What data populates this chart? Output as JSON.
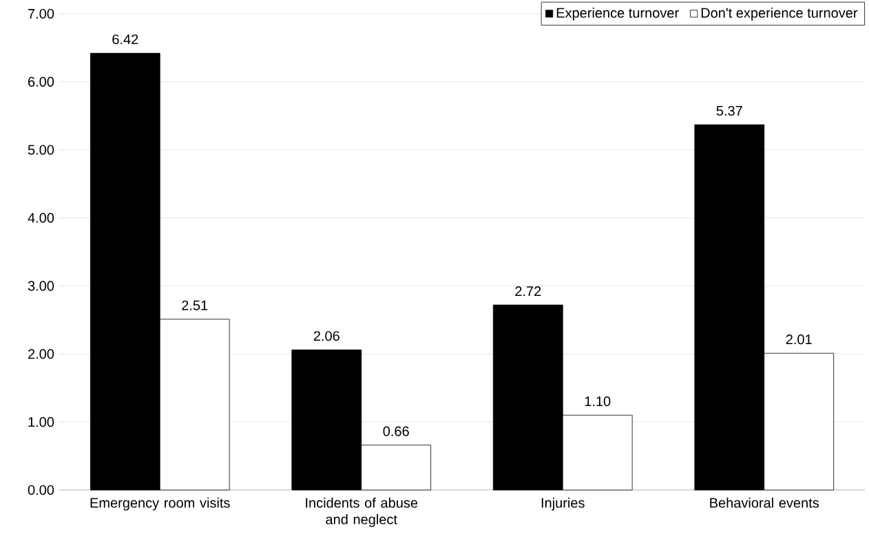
{
  "chart_data": {
    "type": "bar",
    "categories": [
      "Emergency room visits",
      "Incidents of abuse and neglect",
      "Injuries",
      "Behavioral events"
    ],
    "series": [
      {
        "name": "Experience turnover",
        "color": "#000000",
        "values": [
          6.42,
          2.06,
          2.72,
          5.37
        ],
        "value_labels": [
          "6.42",
          "2.06",
          "2.72",
          "5.37"
        ]
      },
      {
        "name": "Don't experience turnover",
        "color": "#ffffff",
        "values": [
          2.51,
          0.66,
          1.1,
          2.01
        ],
        "value_labels": [
          "2.51",
          "0.66",
          "1.10",
          "2.01"
        ]
      }
    ],
    "ylim": [
      0,
      7
    ],
    "yticks": [
      {
        "value": 0,
        "label": "0.00"
      },
      {
        "value": 1,
        "label": "1.00"
      },
      {
        "value": 2,
        "label": "2.00"
      },
      {
        "value": 3,
        "label": "3.00"
      },
      {
        "value": 4,
        "label": "4.00"
      },
      {
        "value": 5,
        "label": "5.00"
      },
      {
        "value": 6,
        "label": "6.00"
      },
      {
        "value": 7,
        "label": "7.00"
      }
    ],
    "grid": "y",
    "legend": "top right"
  }
}
